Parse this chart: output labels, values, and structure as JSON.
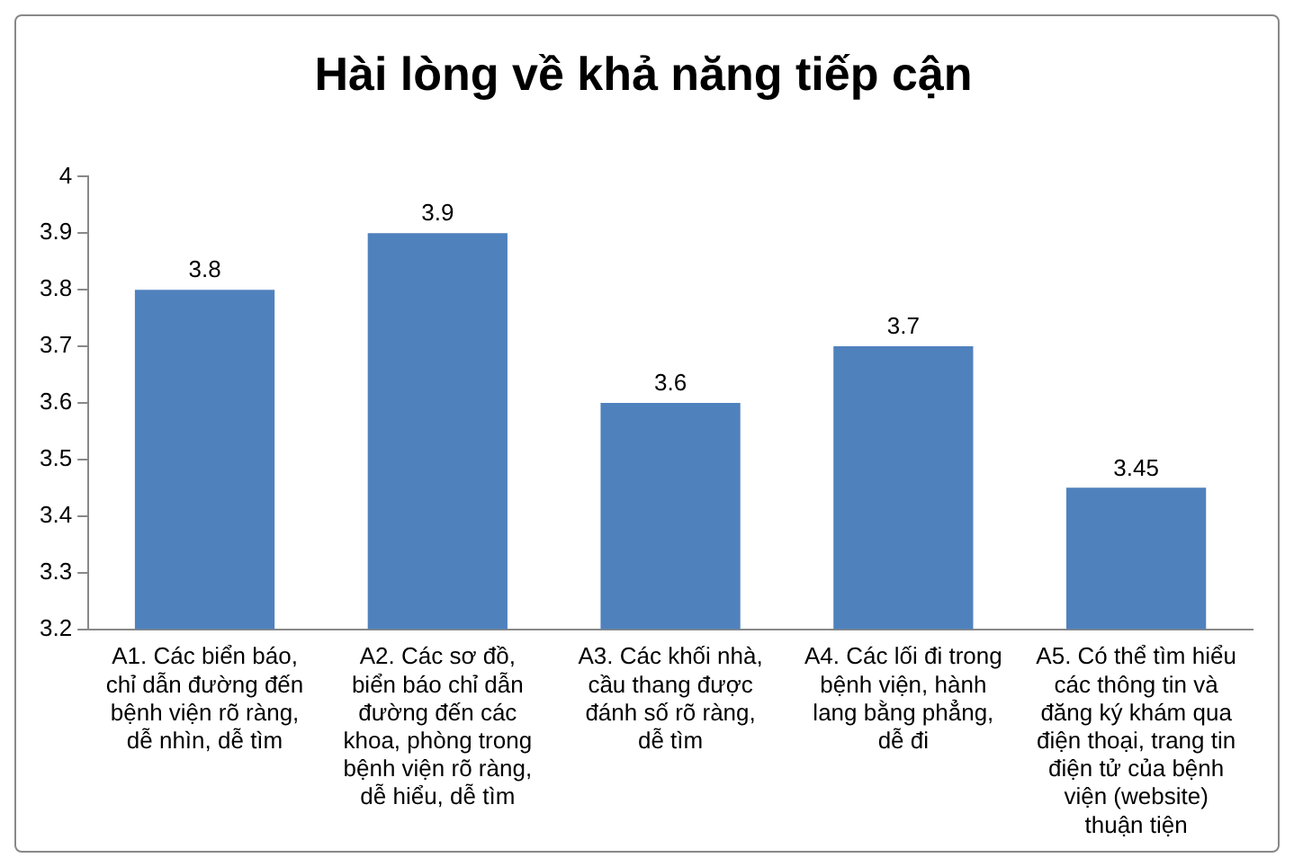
{
  "chart_data": {
    "type": "bar",
    "title": "Hài lòng về khả năng tiếp cận",
    "categories": [
      "A1. Các biển báo, chỉ dẫn đường đến bệnh viện rõ ràng, dễ nhìn, dễ tìm",
      "A2. Các sơ đồ, biển báo chỉ dẫn đường đến các khoa, phòng trong bệnh viện rõ ràng, dễ hiểu, dễ tìm",
      "A3. Các khối nhà, cầu thang được đánh số rõ ràng, dễ tìm",
      "A4. Các lối đi trong bệnh viện, hành lang bằng phẳng, dễ đi",
      "A5. Có thể tìm hiểu các thông tin và đăng ký khám qua điện thoại, trang tin điện tử của bệnh viện (website) thuận tiện"
    ],
    "values": [
      3.8,
      3.9,
      3.6,
      3.7,
      3.45
    ],
    "color": "#4f81bd",
    "ylim": [
      3.2,
      4
    ],
    "yticks": [
      3.2,
      3.3,
      3.4,
      3.5,
      3.6,
      3.7,
      3.8,
      3.9,
      4
    ],
    "data_labels": true,
    "grid": false,
    "legend": false
  }
}
